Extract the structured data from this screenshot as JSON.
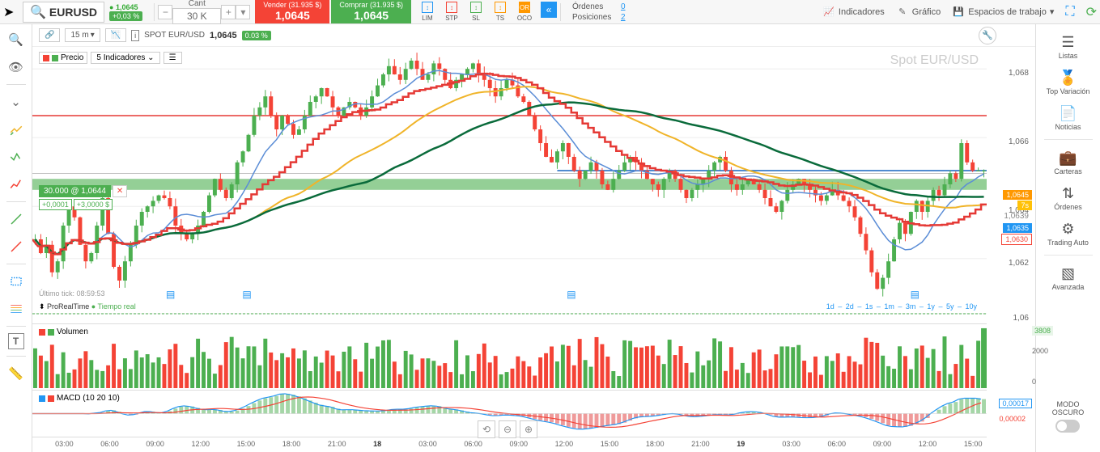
{
  "topbar": {
    "ticker": "EURUSD",
    "price": "1,0645",
    "pct": "+0,03 %",
    "qty_label": "Cant",
    "qty_value": "30 K",
    "sell": {
      "label": "Vender",
      "sub": "(31.935 $)",
      "price": "1,0645"
    },
    "buy": {
      "label": "Comprar",
      "sub": "(31.935 $)",
      "price": "1,0645"
    },
    "order_types": [
      "LIM",
      "STP",
      "SL",
      "TS",
      "OCO"
    ],
    "orders_label": "Órdenes",
    "orders_val": "0",
    "positions_label": "Posiciones",
    "positions_val": "2",
    "indicators": "Indicadores",
    "chart": "Gráfico",
    "workspaces": "Espacios de trabajo"
  },
  "chart_toolbar": {
    "timeframe": "15 m",
    "instrument_label": "SPOT EUR/USD",
    "instrument_price": "1,0645",
    "instrument_pct": "0.03 %",
    "price_label": "Precio",
    "indicators_label": "5 Indicadores"
  },
  "watermark": "Spot EUR/USD",
  "order_box": {
    "main": "30.000 @ 1,0644",
    "sub1": "+0,0001",
    "sub2": "+3,0000 $"
  },
  "status": {
    "last_tick": "Último tick: 08:59:53",
    "prt": "ProRealTime",
    "realtime": "Tiempo real"
  },
  "timeframes": [
    "1d",
    "2d",
    "1s",
    "1m",
    "3m",
    "1y",
    "5y",
    "10y"
  ],
  "y_axis": {
    "ticks": [
      {
        "v": "1,068",
        "pct": 8
      },
      {
        "v": "1,066",
        "pct": 33
      },
      {
        "v": "1,064",
        "pct": 58
      },
      {
        "v": "1,062",
        "pct": 77
      },
      {
        "v": "1,06",
        "pct": 97
      }
    ],
    "live": "1,0645",
    "live_pct": 52,
    "pending": "7s",
    "pending_pct": 56,
    "blue": "1,0635",
    "blue_pct": 64,
    "bid": "1,0639",
    "bid_pct": 60,
    "red": "1,0630",
    "red_pct": 68
  },
  "x_axis": [
    "03:00",
    "06:00",
    "09:00",
    "12:00",
    "15:00",
    "18:00",
    "21:00",
    "18",
    "03:00",
    "06:00",
    "09:00",
    "12:00",
    "15:00",
    "18:00",
    "21:00",
    "19",
    "03:00",
    "06:00",
    "09:00",
    "12:00",
    "15:00"
  ],
  "volume": {
    "label": "Volumen",
    "max": "2000",
    "zero": "0",
    "current": "3808"
  },
  "macd": {
    "label": "MACD (10 20 10)",
    "cur": "0,00017",
    "zero": "0,00002"
  },
  "right_panel": [
    "Listas",
    "Top Variación",
    "Noticias",
    "Carteras",
    "Órdenes",
    "Trading Auto",
    "Avanzada"
  ],
  "dark_mode": {
    "l1": "MODO",
    "l2": "OSCURO"
  },
  "chart": {
    "y_min": 1.059,
    "y_max": 1.069,
    "red_line_y": 1.0665,
    "green_zone_top": 1.0642,
    "green_zone_bot": 1.0638,
    "blue_line_y": 1.0645,
    "candles_n": 170,
    "colors": {
      "up": "#4CAF50",
      "down": "#f44336",
      "ma_blue": "#5b8dd6",
      "ma_yellow": "#f0b429",
      "ma_green": "#0a6b3b",
      "ma_red": "#e53935",
      "grid": "#eeeeee"
    }
  }
}
